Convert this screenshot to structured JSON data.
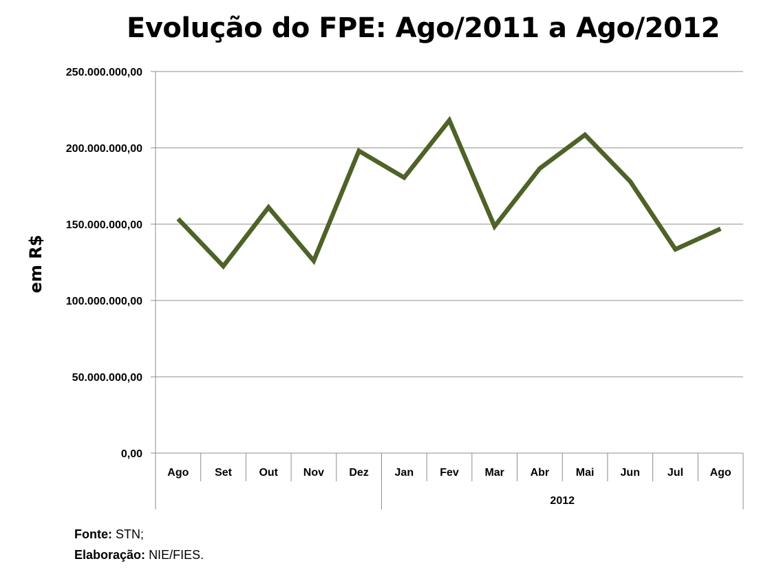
{
  "chart_data": {
    "type": "line",
    "title": "Evolução do FPE: Ago/2011 a Ago/2012",
    "ylabel": "em R$",
    "xlabel": "",
    "categories": [
      "Ago",
      "Set",
      "Out",
      "Nov",
      "Dez",
      "Jan",
      "Fev",
      "Mar",
      "Abr",
      "Mai",
      "Jun",
      "Jul",
      "Ago"
    ],
    "year_groups": [
      {
        "label": "",
        "start": 0,
        "end": 4
      },
      {
        "label": "2012",
        "start": 5,
        "end": 12
      }
    ],
    "series": [
      {
        "name": "FPE",
        "color": "#4f6228",
        "values": [
          153500000,
          122500000,
          161000000,
          126000000,
          198000000,
          180500000,
          218000000,
          148500000,
          186500000,
          208500000,
          178000000,
          133500000,
          147000000
        ]
      }
    ],
    "ylim": [
      0,
      250000000
    ],
    "yticks": [
      0,
      50000000,
      100000000,
      150000000,
      200000000,
      250000000
    ],
    "ytick_labels": [
      "0,00",
      "50.000.000,00",
      "100.000.000,00",
      "150.000.000,00",
      "200.000.000,00",
      "250.000.000,00"
    ],
    "grid": true
  },
  "source": {
    "fonte_label": "Fonte:",
    "fonte_value": "STN;",
    "elaboracao_label": "Elaboração:",
    "elaboracao_value": "NIE/FIES."
  }
}
